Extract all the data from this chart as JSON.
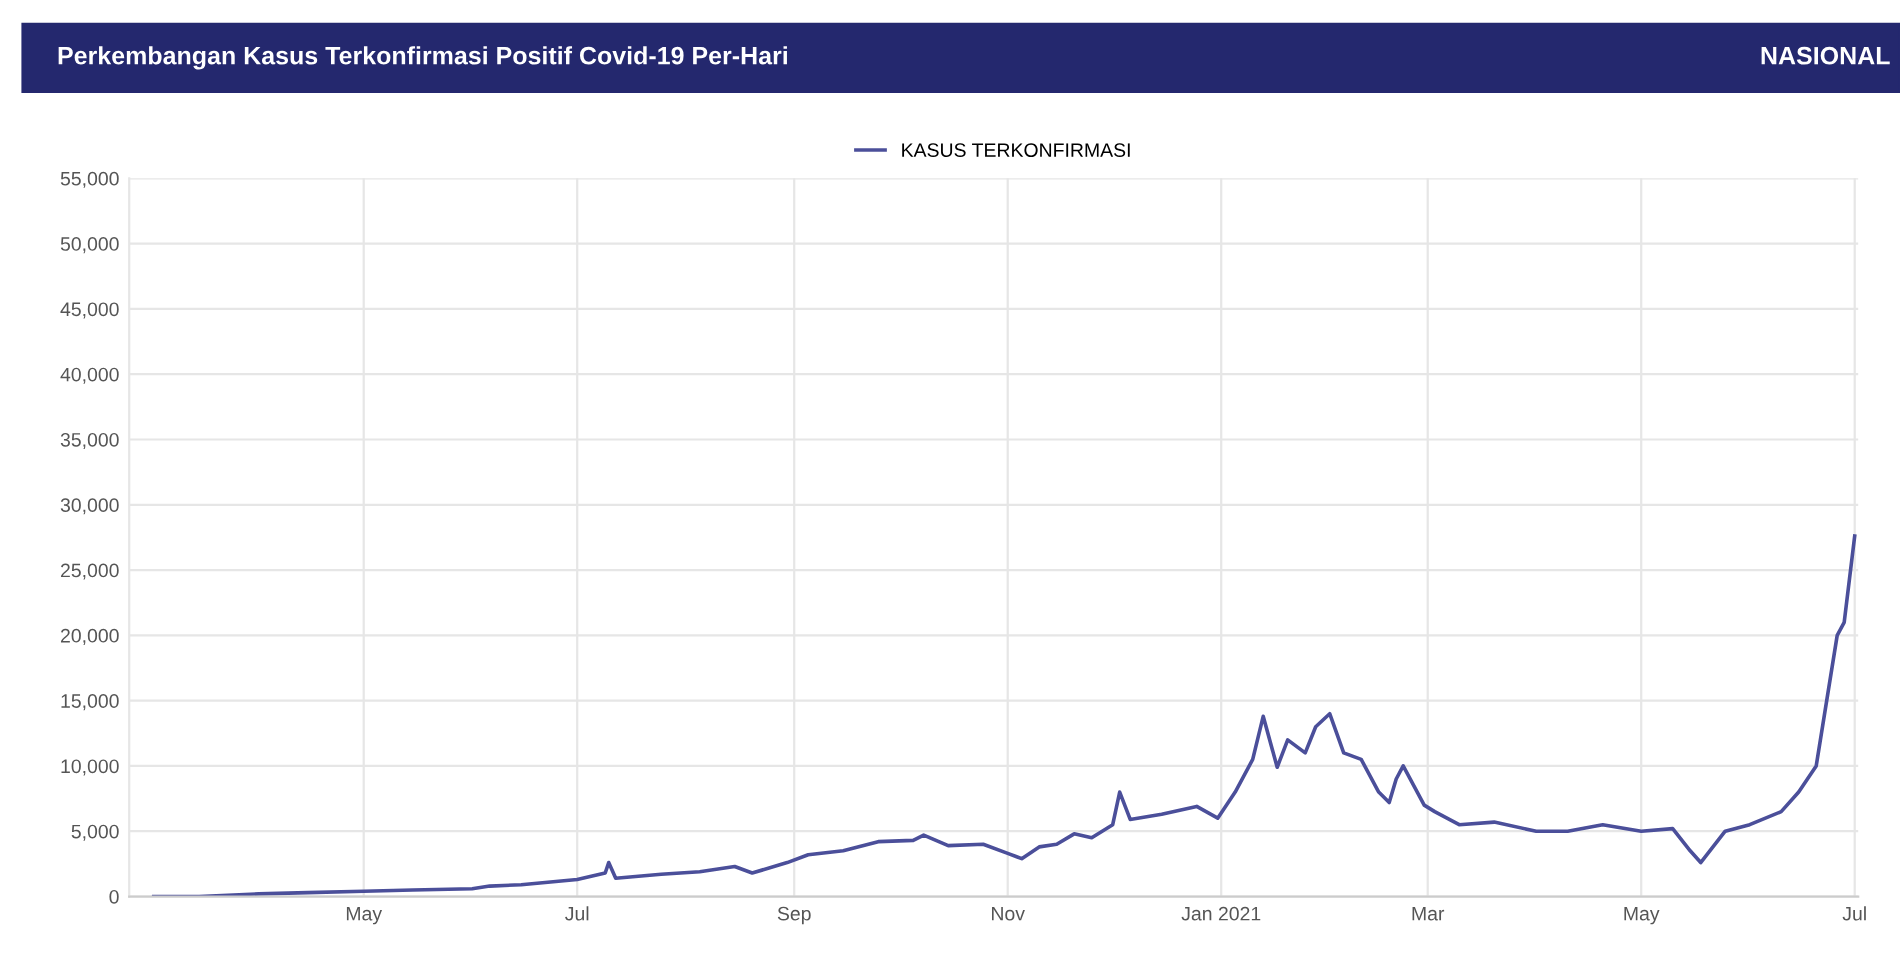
{
  "chart_data": {
    "type": "line",
    "title": "Perkembangan Kasus Terkonfirmasi Positif Covid-19 Per-Hari",
    "subtitle": "NASIONAL",
    "x": [
      "2020-03-02",
      "2020-03-15",
      "2020-04-01",
      "2020-04-15",
      "2020-05-01",
      "2020-05-15",
      "2020-06-01",
      "2020-06-06",
      "2020-06-15",
      "2020-07-01",
      "2020-07-09",
      "2020-07-10",
      "2020-07-12",
      "2020-07-25",
      "2020-08-05",
      "2020-08-15",
      "2020-08-20",
      "2020-08-30",
      "2020-09-05",
      "2020-09-15",
      "2020-09-25",
      "2020-10-05",
      "2020-10-08",
      "2020-10-15",
      "2020-10-25",
      "2020-11-01",
      "2020-11-05",
      "2020-11-10",
      "2020-11-15",
      "2020-11-20",
      "2020-11-25",
      "2020-12-01",
      "2020-12-03",
      "2020-12-06",
      "2020-12-15",
      "2020-12-25",
      "2020-12-31",
      "2021-01-05",
      "2021-01-10",
      "2021-01-13",
      "2021-01-17",
      "2021-01-20",
      "2021-01-25",
      "2021-01-28",
      "2021-02-01",
      "2021-02-05",
      "2021-02-10",
      "2021-02-15",
      "2021-02-18",
      "2021-02-20",
      "2021-02-22",
      "2021-02-28",
      "2021-03-03",
      "2021-03-10",
      "2021-03-20",
      "2021-04-01",
      "2021-04-10",
      "2021-04-20",
      "2021-05-01",
      "2021-05-10",
      "2021-05-15",
      "2021-05-18",
      "2021-05-25",
      "2021-06-01",
      "2021-06-10",
      "2021-06-15",
      "2021-06-20",
      "2021-06-23",
      "2021-06-26",
      "2021-06-28",
      "2021-07-01"
    ],
    "series": [
      {
        "name": "KASUS TERKONFIRMASI",
        "color": "#4b4f9a",
        "values": [
          0,
          0,
          200,
          300,
          400,
          500,
          600,
          800,
          900,
          1300,
          1800,
          2600,
          1400,
          1700,
          1900,
          2300,
          1800,
          2600,
          3200,
          3500,
          4200,
          4300,
          4700,
          3900,
          4000,
          3300,
          2900,
          3800,
          4000,
          4800,
          4500,
          5500,
          8000,
          5900,
          6300,
          6900,
          6000,
          8000,
          10500,
          13800,
          9900,
          12000,
          11000,
          13000,
          14000,
          11000,
          10500,
          8000,
          7200,
          9000,
          10000,
          7000,
          6500,
          5500,
          5700,
          5000,
          5000,
          5500,
          5000,
          5200,
          3500,
          2600,
          5000,
          5500,
          6500,
          8000,
          10000,
          15000,
          20000,
          21000,
          27600
        ]
      }
    ],
    "xlim": [
      "2020-02-24",
      "2021-07-02"
    ],
    "xticks": [
      {
        "value": "2020-05-01",
        "label": "May"
      },
      {
        "value": "2020-07-01",
        "label": "Jul"
      },
      {
        "value": "2020-09-01",
        "label": "Sep"
      },
      {
        "value": "2020-11-01",
        "label": "Nov"
      },
      {
        "value": "2021-01-01",
        "label": "Jan 2021"
      },
      {
        "value": "2021-03-01",
        "label": "Mar"
      },
      {
        "value": "2021-05-01",
        "label": "May"
      },
      {
        "value": "2021-07-01",
        "label": "Jul"
      }
    ],
    "ylim": [
      0,
      55000
    ],
    "yticks": [
      {
        "value": 0,
        "label": "0"
      },
      {
        "value": 5000,
        "label": "5,000"
      },
      {
        "value": 10000,
        "label": "10,000"
      },
      {
        "value": 15000,
        "label": "15,000"
      },
      {
        "value": 20000,
        "label": "20,000"
      },
      {
        "value": 25000,
        "label": "25,000"
      },
      {
        "value": 30000,
        "label": "30,000"
      },
      {
        "value": 35000,
        "label": "35,000"
      },
      {
        "value": 40000,
        "label": "40,000"
      },
      {
        "value": 45000,
        "label": "45,000"
      },
      {
        "value": 50000,
        "label": "50,000"
      },
      {
        "value": 55000,
        "label": "55,000"
      }
    ],
    "grid": true,
    "legend": "top",
    "marker": "none",
    "line_style": "solid"
  }
}
